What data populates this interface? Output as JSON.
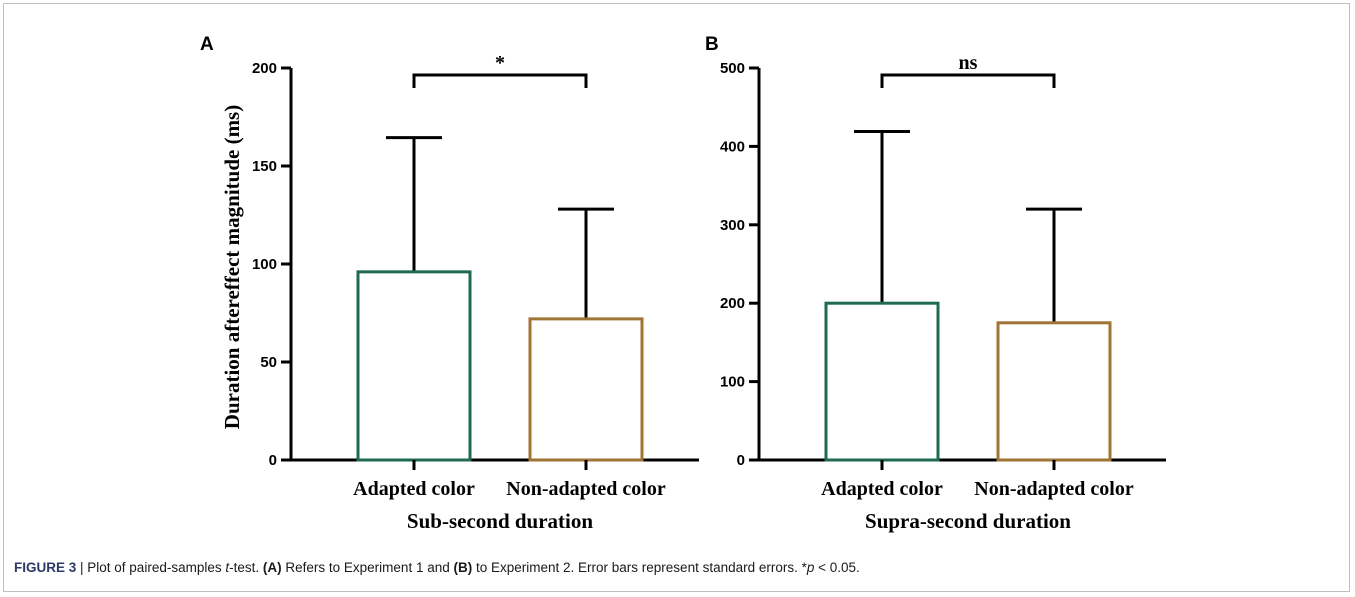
{
  "figure": {
    "caption_label": "FIGURE 3",
    "caption_sep": " | ",
    "caption_parts": [
      {
        "text": "Plot of paired-samples ",
        "style": "normal"
      },
      {
        "text": "t",
        "style": "italic"
      },
      {
        "text": "-test. ",
        "style": "normal"
      },
      {
        "text": "(A)",
        "style": "bold"
      },
      {
        "text": " Refers to Experiment 1 and ",
        "style": "normal"
      },
      {
        "text": "(B)",
        "style": "bold"
      },
      {
        "text": " to Experiment 2. Error bars represent standard errors. *",
        "style": "normal"
      },
      {
        "text": "p",
        "style": "italic"
      },
      {
        "text": " < 0.05.",
        "style": "normal"
      }
    ],
    "ylabel": "Duration aftereffect magnitude (ms)"
  },
  "colors": {
    "adapted": "#1e6b4f",
    "non_adapted": "#a07434",
    "axis": "#000000"
  },
  "chart_data": [
    {
      "type": "bar",
      "panel": "A",
      "xlabel": "Sub-second duration",
      "ylabel": "Duration aftereffect magnitude (ms)",
      "categories": [
        "Adapted color",
        "Non-adapted color"
      ],
      "values": [
        96,
        72
      ],
      "error_upper": [
        164.5,
        128
      ],
      "ylim": [
        0,
        200
      ],
      "yticks": [
        0,
        50,
        100,
        150,
        200
      ],
      "significance": "*"
    },
    {
      "type": "bar",
      "panel": "B",
      "xlabel": "Supra-second duration",
      "ylabel": "",
      "categories": [
        "Adapted color",
        "Non-adapted color"
      ],
      "values": [
        200,
        175
      ],
      "error_upper": [
        419,
        320
      ],
      "ylim": [
        0,
        500
      ],
      "yticks": [
        0,
        100,
        200,
        300,
        400,
        500
      ],
      "significance": "ns"
    }
  ]
}
